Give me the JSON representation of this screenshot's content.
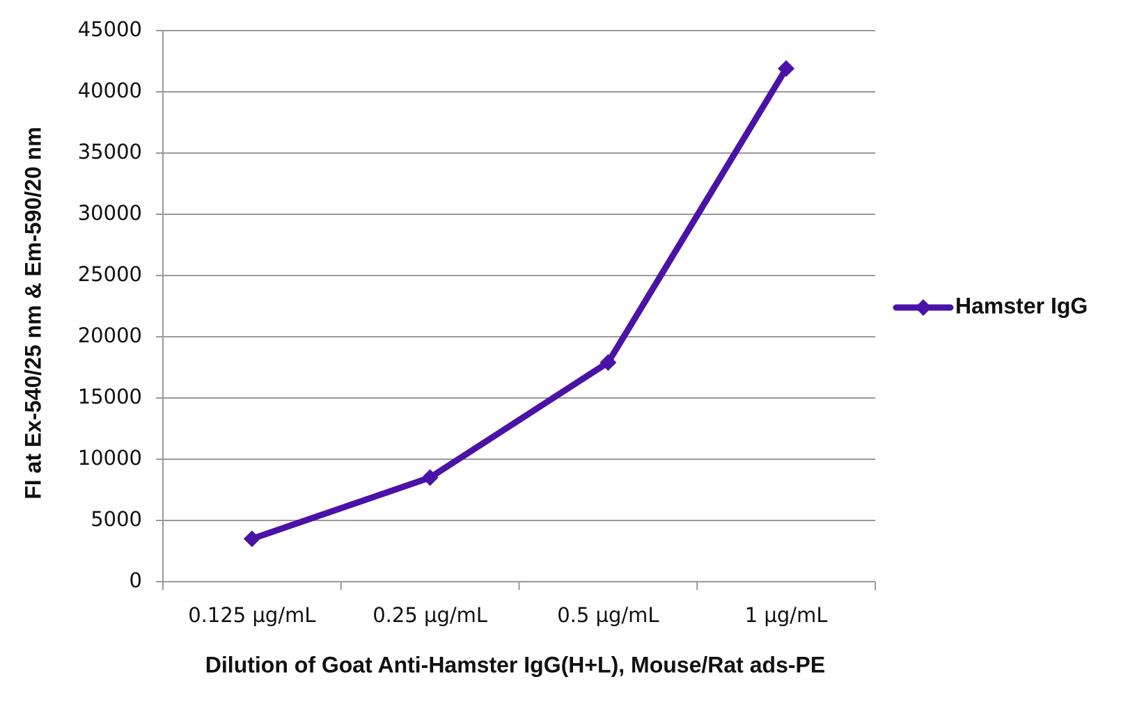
{
  "chart_data": {
    "type": "line",
    "x_label": "Dilution of Goat Anti-Hamster IgG(H+L), Mouse/Rat ads-PE",
    "y_label": "FI at Ex-540/25 nm & Em-590/20 nm",
    "categories": [
      "0.125 µg/mL",
      "0.25 µg/mL",
      "0.5 µg/mL",
      "1 µg/mL"
    ],
    "series": [
      {
        "name": "Hamster IgG",
        "color": "#4b12a8",
        "values": [
          3500,
          8500,
          17900,
          41900
        ]
      }
    ],
    "ylim": [
      0,
      45000
    ],
    "yticks": [
      0,
      5000,
      10000,
      15000,
      20000,
      25000,
      30000,
      35000,
      40000,
      45000
    ],
    "grid": true,
    "legend": "right"
  }
}
